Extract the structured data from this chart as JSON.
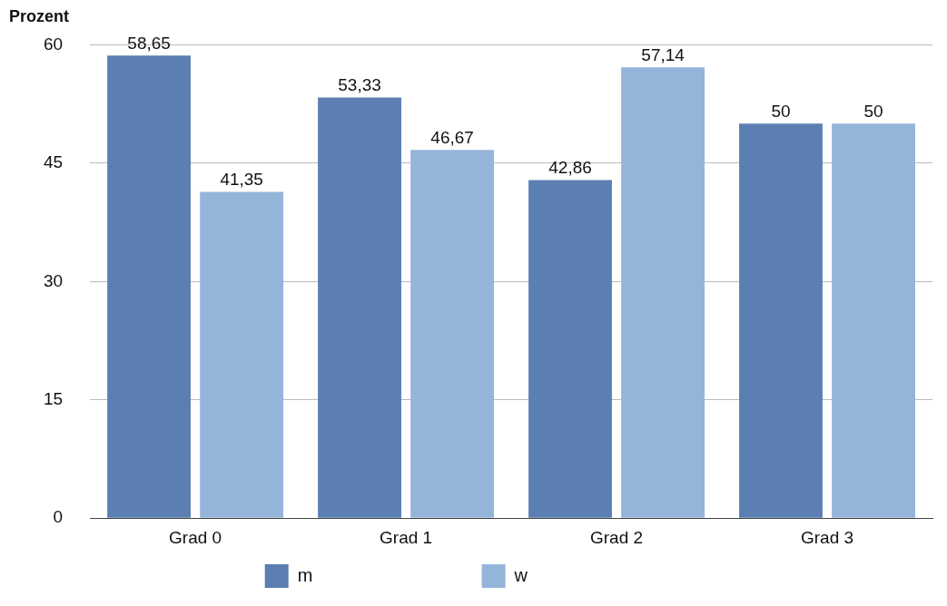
{
  "chart_data": {
    "type": "bar",
    "ylabel": "Prozent",
    "categories": [
      "Grad 0",
      "Grad 1",
      "Grad 2",
      "Grad 3"
    ],
    "series": [
      {
        "name": "m",
        "color": "#5b7fb3",
        "values": [
          58.65,
          53.33,
          42.86,
          50
        ],
        "value_labels": [
          "58,65",
          "53,33",
          "42,86",
          "50"
        ]
      },
      {
        "name": "w",
        "color": "#95b4da",
        "values": [
          41.35,
          46.67,
          57.14,
          50
        ],
        "value_labels": [
          "41,35",
          "46,67",
          "57,14",
          "50"
        ]
      }
    ],
    "ylim": [
      0,
      60
    ],
    "yticks": [
      0,
      15,
      30,
      45,
      60
    ],
    "grid": "y",
    "legend": "bottom"
  }
}
